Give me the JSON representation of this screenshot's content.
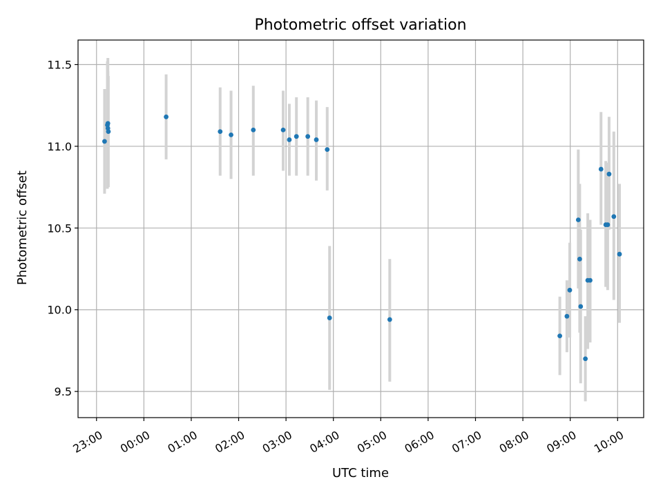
{
  "chart_data": {
    "type": "scatter",
    "title": "Photometric offset variation",
    "xlabel": "UTC time",
    "ylabel": "Photometric offset",
    "x_unit": "hours (UTC, 23:00 on previous day = -1)",
    "xlim": [
      -1.39,
      10.55
    ],
    "ylim": [
      9.34,
      11.65
    ],
    "x_ticks": [
      {
        "value": -1,
        "label": "23:00"
      },
      {
        "value": 0,
        "label": "00:00"
      },
      {
        "value": 1,
        "label": "01:00"
      },
      {
        "value": 2,
        "label": "02:00"
      },
      {
        "value": 3,
        "label": "03:00"
      },
      {
        "value": 4,
        "label": "04:00"
      },
      {
        "value": 5,
        "label": "05:00"
      },
      {
        "value": 6,
        "label": "06:00"
      },
      {
        "value": 7,
        "label": "07:00"
      },
      {
        "value": 8,
        "label": "08:00"
      },
      {
        "value": 9,
        "label": "09:00"
      },
      {
        "value": 10,
        "label": "10:00"
      }
    ],
    "y_ticks": [
      {
        "value": 9.5,
        "label": "9.5"
      },
      {
        "value": 10.0,
        "label": "10.0"
      },
      {
        "value": 10.5,
        "label": "10.5"
      },
      {
        "value": 11.0,
        "label": "11.0"
      },
      {
        "value": 11.5,
        "label": "11.5"
      }
    ],
    "grid": true,
    "point_color": "#1f77b4",
    "errorbar_color": "#d3d3d3",
    "points": [
      {
        "time": "23:10",
        "x": -0.83,
        "y": 11.03,
        "ylow": 10.71,
        "yhigh": 11.35
      },
      {
        "time": "23:14",
        "x": -0.77,
        "y": 11.13,
        "ylow": 10.74,
        "yhigh": 11.52
      },
      {
        "time": "23:14",
        "x": -0.76,
        "y": 11.14,
        "ylow": 10.75,
        "yhigh": 11.54
      },
      {
        "time": "23:14",
        "x": -0.76,
        "y": 11.11,
        "ylow": 10.76,
        "yhigh": 11.46
      },
      {
        "time": "23:15",
        "x": -0.75,
        "y": 11.09,
        "ylow": 10.75,
        "yhigh": 11.43
      },
      {
        "time": "00:28",
        "x": 0.47,
        "y": 11.18,
        "ylow": 10.92,
        "yhigh": 11.44
      },
      {
        "time": "01:36",
        "x": 1.61,
        "y": 11.09,
        "ylow": 10.82,
        "yhigh": 11.36
      },
      {
        "time": "01:50",
        "x": 1.84,
        "y": 11.07,
        "ylow": 10.8,
        "yhigh": 11.34
      },
      {
        "time": "02:18",
        "x": 2.31,
        "y": 11.1,
        "ylow": 10.82,
        "yhigh": 11.37
      },
      {
        "time": "02:56",
        "x": 2.94,
        "y": 11.1,
        "ylow": 10.85,
        "yhigh": 11.34
      },
      {
        "time": "03:04",
        "x": 3.07,
        "y": 11.04,
        "ylow": 10.82,
        "yhigh": 11.26
      },
      {
        "time": "03:13",
        "x": 3.22,
        "y": 11.06,
        "ylow": 10.82,
        "yhigh": 11.3
      },
      {
        "time": "03:28",
        "x": 3.46,
        "y": 11.06,
        "ylow": 10.82,
        "yhigh": 11.3
      },
      {
        "time": "03:38",
        "x": 3.64,
        "y": 11.04,
        "ylow": 10.79,
        "yhigh": 11.28
      },
      {
        "time": "03:52",
        "x": 3.87,
        "y": 10.98,
        "ylow": 10.73,
        "yhigh": 11.24
      },
      {
        "time": "03:55",
        "x": 3.92,
        "y": 9.95,
        "ylow": 9.51,
        "yhigh": 10.39
      },
      {
        "time": "05:12",
        "x": 5.19,
        "y": 9.94,
        "ylow": 9.56,
        "yhigh": 10.31
      },
      {
        "time": "08:47",
        "x": 8.78,
        "y": 9.84,
        "ylow": 9.6,
        "yhigh": 10.08
      },
      {
        "time": "08:56",
        "x": 8.93,
        "y": 9.96,
        "ylow": 9.74,
        "yhigh": 10.18
      },
      {
        "time": "08:59",
        "x": 8.99,
        "y": 10.12,
        "ylow": 9.83,
        "yhigh": 10.41
      },
      {
        "time": "09:10",
        "x": 9.17,
        "y": 10.55,
        "ylow": 10.13,
        "yhigh": 10.98
      },
      {
        "time": "09:12",
        "x": 9.2,
        "y": 10.31,
        "ylow": 9.86,
        "yhigh": 10.77
      },
      {
        "time": "09:13",
        "x": 9.22,
        "y": 10.02,
        "ylow": 9.55,
        "yhigh": 10.49
      },
      {
        "time": "09:19",
        "x": 9.32,
        "y": 9.7,
        "ylow": 9.44,
        "yhigh": 9.96
      },
      {
        "time": "09:22",
        "x": 9.37,
        "y": 10.18,
        "ylow": 9.76,
        "yhigh": 10.59
      },
      {
        "time": "09:25",
        "x": 9.42,
        "y": 10.18,
        "ylow": 9.8,
        "yhigh": 10.55
      },
      {
        "time": "09:39",
        "x": 9.65,
        "y": 10.86,
        "ylow": 10.52,
        "yhigh": 11.21
      },
      {
        "time": "09:45",
        "x": 9.75,
        "y": 10.52,
        "ylow": 10.14,
        "yhigh": 10.91
      },
      {
        "time": "09:47",
        "x": 9.79,
        "y": 10.52,
        "ylow": 10.12,
        "yhigh": 10.9
      },
      {
        "time": "09:49",
        "x": 9.82,
        "y": 10.83,
        "ylow": 10.49,
        "yhigh": 11.18
      },
      {
        "time": "09:55",
        "x": 9.92,
        "y": 10.57,
        "ylow": 10.06,
        "yhigh": 11.09
      },
      {
        "time": "10:02",
        "x": 10.04,
        "y": 10.34,
        "ylow": 9.92,
        "yhigh": 10.77
      }
    ]
  }
}
